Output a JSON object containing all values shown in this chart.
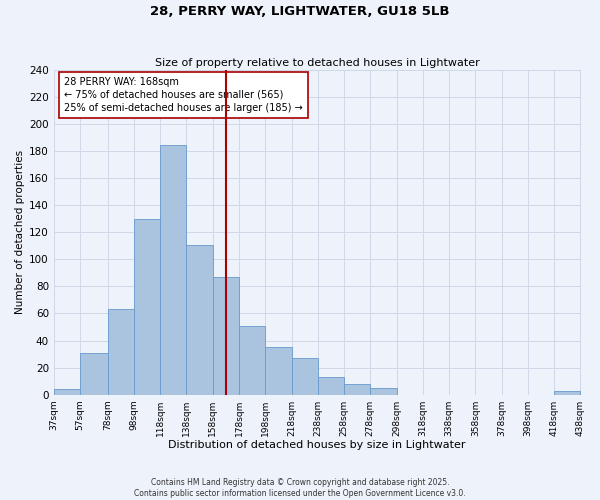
{
  "title": "28, PERRY WAY, LIGHTWATER, GU18 5LB",
  "subtitle": "Size of property relative to detached houses in Lightwater",
  "xlabel": "Distribution of detached houses by size in Lightwater",
  "ylabel": "Number of detached properties",
  "bin_edges": [
    37,
    57,
    78,
    98,
    118,
    138,
    158,
    178,
    198,
    218,
    238,
    258,
    278,
    298,
    318,
    338,
    358,
    378,
    398,
    418,
    438
  ],
  "bar_heights": [
    4,
    31,
    63,
    130,
    185,
    111,
    87,
    51,
    35,
    27,
    13,
    8,
    5,
    0,
    0,
    0,
    0,
    0,
    0,
    3
  ],
  "bar_color": "#aac4e0",
  "bar_edgecolor": "#6699cc",
  "vline_x": 168,
  "vline_color": "#aa0000",
  "annotation_line1": "28 PERRY WAY: 168sqm",
  "annotation_line2": "← 75% of detached houses are smaller (565)",
  "annotation_line3": "25% of semi-detached houses are larger (185) →",
  "ylim": [
    0,
    240
  ],
  "yticks": [
    0,
    20,
    40,
    60,
    80,
    100,
    120,
    140,
    160,
    180,
    200,
    220,
    240
  ],
  "xtick_labels": [
    "37sqm",
    "57sqm",
    "78sqm",
    "98sqm",
    "118sqm",
    "138sqm",
    "158sqm",
    "178sqm",
    "198sqm",
    "218sqm",
    "238sqm",
    "258sqm",
    "278sqm",
    "298sqm",
    "318sqm",
    "338sqm",
    "358sqm",
    "378sqm",
    "398sqm",
    "418sqm",
    "438sqm"
  ],
  "grid_color": "#d0d8e8",
  "background_color": "#eef2fa",
  "footer_line1": "Contains HM Land Registry data © Crown copyright and database right 2025.",
  "footer_line2": "Contains public sector information licensed under the Open Government Licence v3.0."
}
